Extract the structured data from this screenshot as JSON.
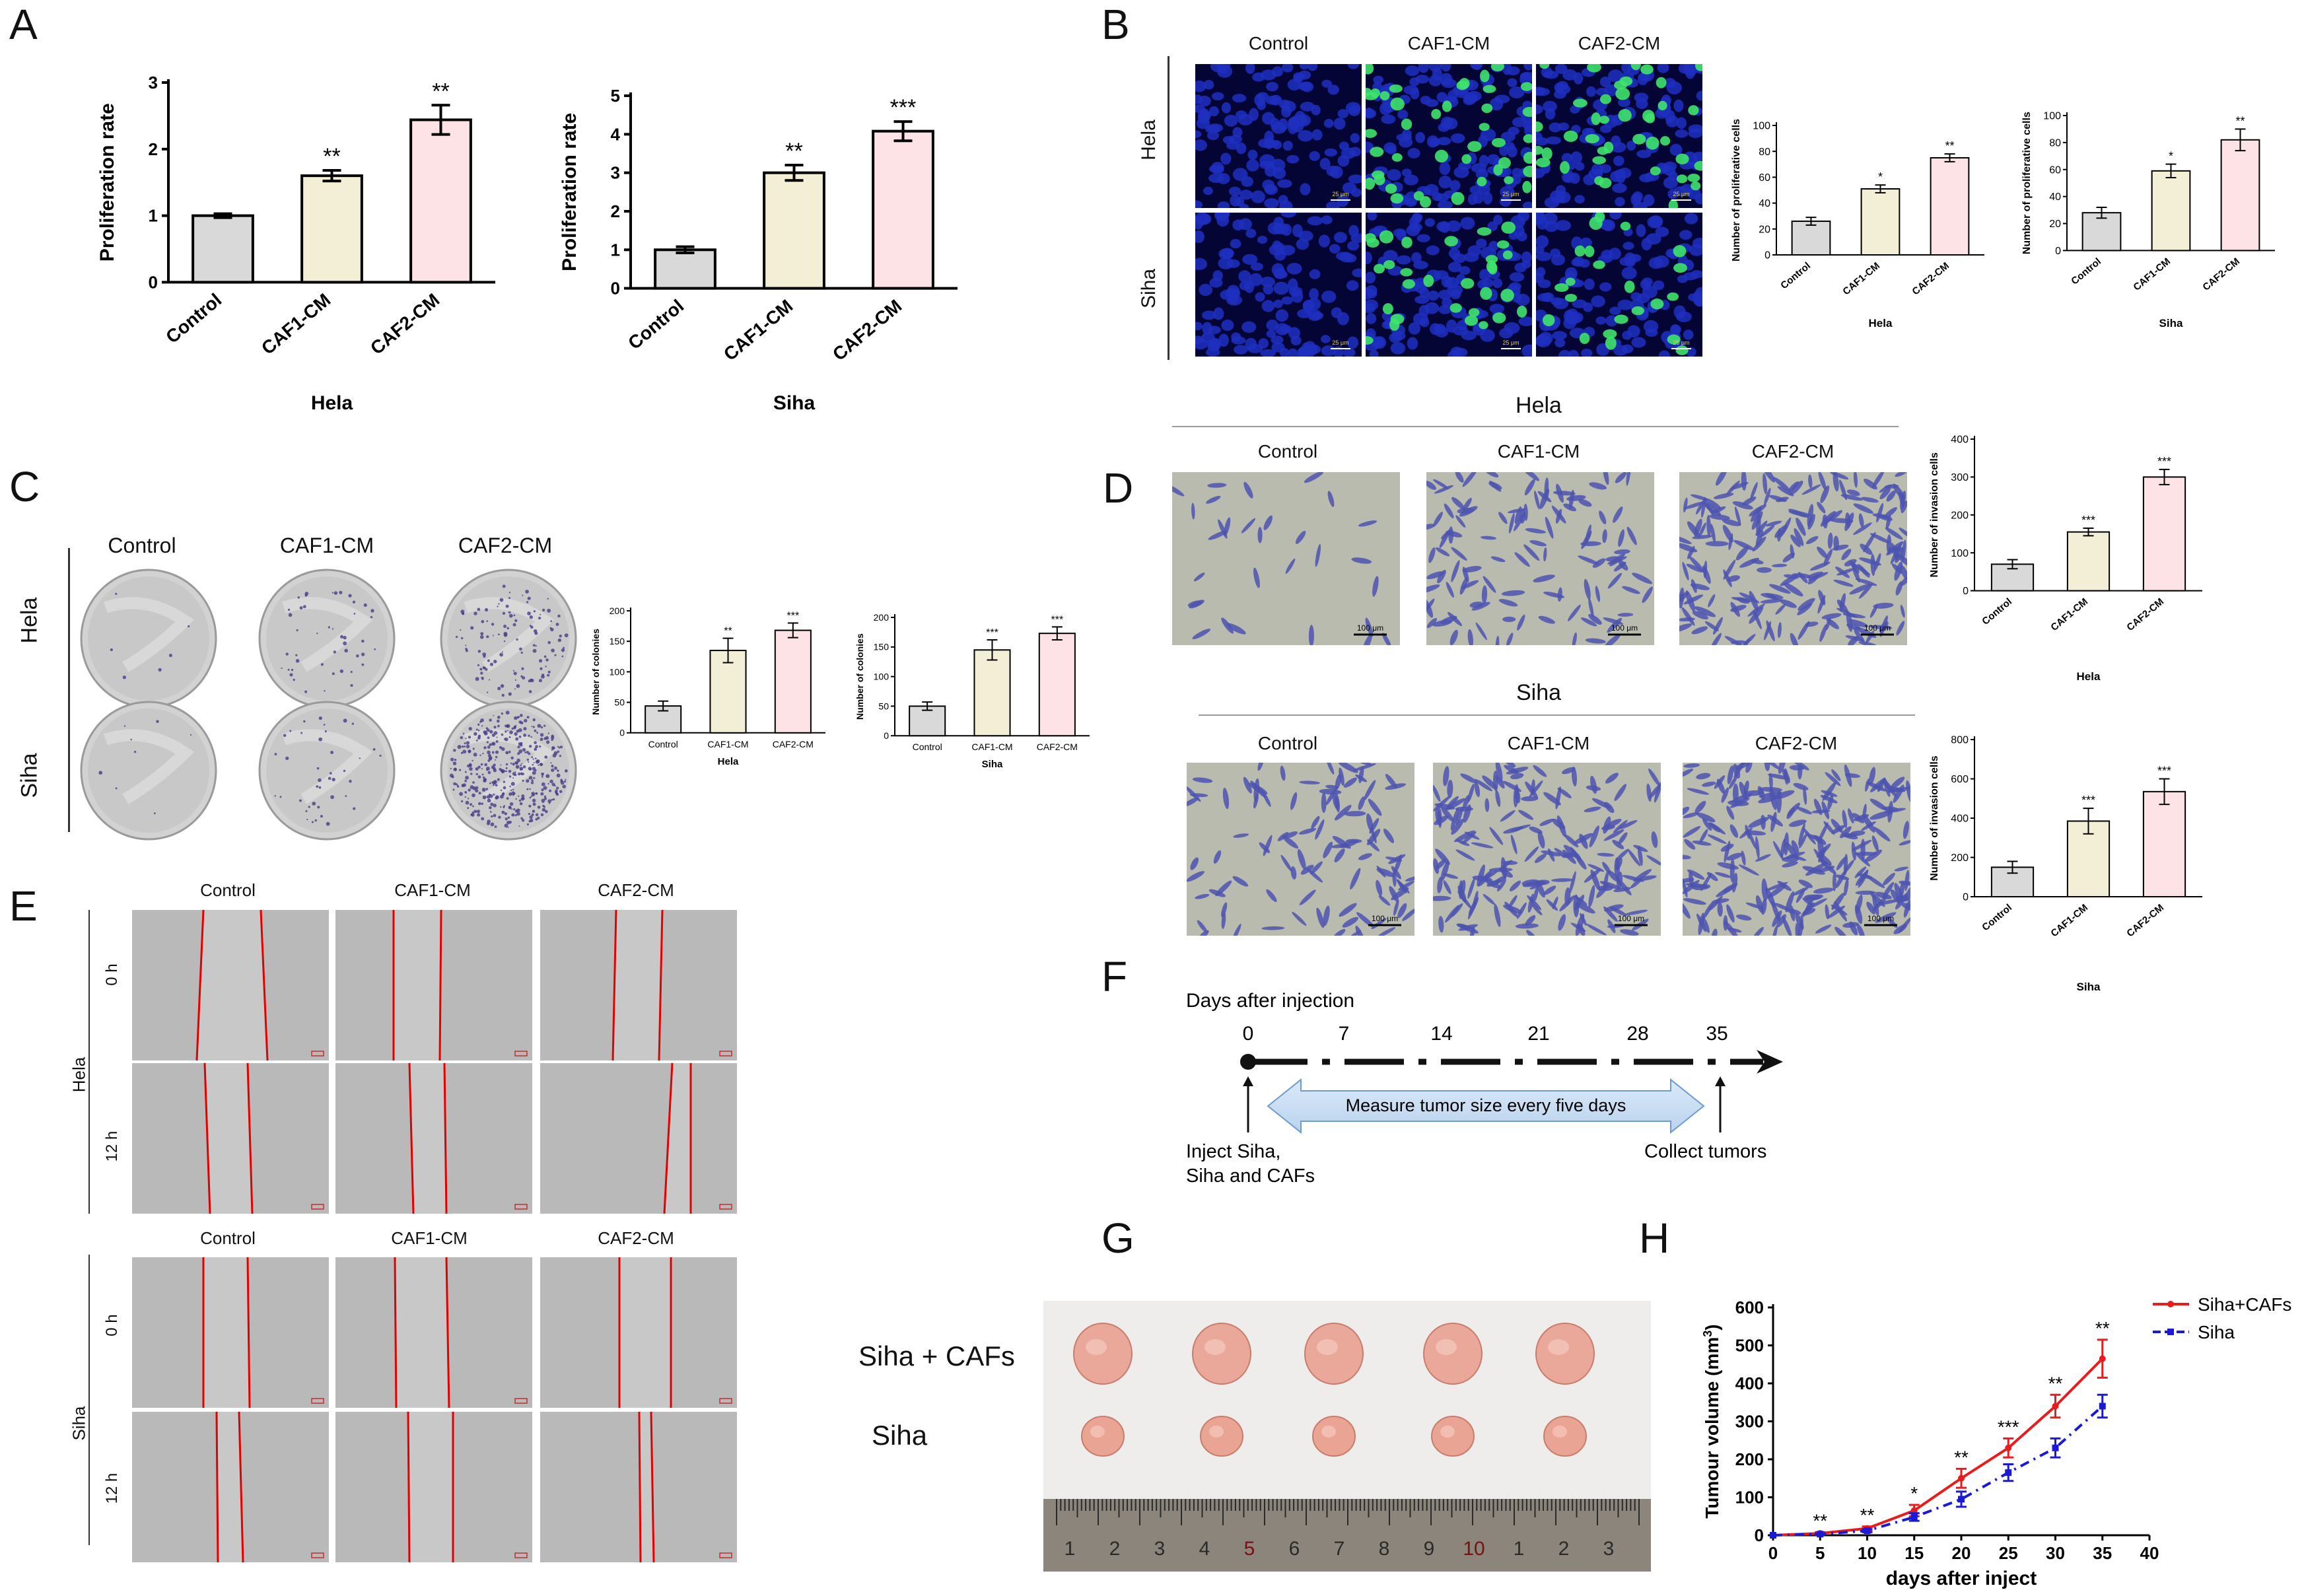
{
  "panels": {
    "A": "A",
    "B": "B",
    "C": "C",
    "D": "D",
    "E": "E",
    "F": "F",
    "G": "G",
    "H": "H"
  },
  "conditions": [
    "Control",
    "CAF1-CM",
    "CAF2-CM"
  ],
  "cell_lines": {
    "hela": "Hela",
    "siha": "Siha"
  },
  "scale_bars": {
    "b": "25 μm",
    "d": "100 μm"
  },
  "timepoints": {
    "t0": "0 h",
    "t12": "12 h"
  },
  "colors": {
    "control": "#d9d9d9",
    "caf1": "#f2efd6",
    "caf2": "#fde3e5",
    "h_siha_cafs": "#e81c1c",
    "h_siha": "#1a1ad6"
  },
  "chart_data": [
    {
      "id": "A1",
      "type": "bar",
      "categories": [
        "Control",
        "CAF1-CM",
        "CAF2-CM"
      ],
      "values": [
        1.0,
        1.6,
        2.44
      ],
      "errors": [
        0.03,
        0.08,
        0.22
      ],
      "sig": [
        "",
        "**",
        "**"
      ],
      "ylabel": "Proliferation rate",
      "xlabel": "Hela",
      "ylim": [
        0,
        3
      ],
      "yticks": [
        0,
        1,
        2,
        3
      ]
    },
    {
      "id": "A2",
      "type": "bar",
      "categories": [
        "Control",
        "CAF1-CM",
        "CAF2-CM"
      ],
      "values": [
        1.0,
        3.0,
        4.08
      ],
      "errors": [
        0.08,
        0.2,
        0.25
      ],
      "sig": [
        "",
        "**",
        "***"
      ],
      "ylabel": "Proliferation rate",
      "xlabel": "Siha",
      "ylim": [
        0,
        5
      ],
      "yticks": [
        0,
        1,
        2,
        3,
        4,
        5
      ]
    },
    {
      "id": "B1",
      "type": "bar",
      "categories": [
        "Control",
        "CAF1-CM",
        "CAF2-CM"
      ],
      "values": [
        26,
        51,
        75
      ],
      "errors": [
        3,
        3,
        3
      ],
      "sig": [
        "",
        "*",
        "**"
      ],
      "ylabel": "Number of proliferative cells",
      "xlabel": "Hela",
      "ylim": [
        0,
        100
      ],
      "yticks": [
        0,
        20,
        40,
        60,
        80,
        100
      ]
    },
    {
      "id": "B2",
      "type": "bar",
      "categories": [
        "Control",
        "CAF1-CM",
        "CAF2-CM"
      ],
      "values": [
        28,
        59,
        82
      ],
      "errors": [
        4,
        5,
        8
      ],
      "sig": [
        "",
        "*",
        "**"
      ],
      "ylabel": "Number of proliferative cells",
      "xlabel": "Siha",
      "ylim": [
        0,
        100
      ],
      "yticks": [
        0,
        20,
        40,
        60,
        80,
        100
      ]
    },
    {
      "id": "C1",
      "type": "bar",
      "categories": [
        "Control",
        "CAF1-CM",
        "CAF2-CM"
      ],
      "values": [
        44,
        135,
        168
      ],
      "errors": [
        8,
        20,
        12
      ],
      "sig": [
        "",
        "**",
        "***"
      ],
      "ylabel": "Number of colonies",
      "xlabel": "Hela",
      "ylim": [
        0,
        200
      ],
      "yticks": [
        0,
        50,
        100,
        150,
        200
      ]
    },
    {
      "id": "C2",
      "type": "bar",
      "categories": [
        "Control",
        "CAF1-CM",
        "CAF2-CM"
      ],
      "values": [
        50,
        145,
        173
      ],
      "errors": [
        7,
        17,
        11
      ],
      "sig": [
        "",
        "***",
        "***"
      ],
      "ylabel": "Number of colonies",
      "xlabel": "Siha",
      "ylim": [
        0,
        200
      ],
      "yticks": [
        0,
        50,
        100,
        150,
        200
      ]
    },
    {
      "id": "D1",
      "type": "bar",
      "categories": [
        "Control",
        "CAF1-CM",
        "CAF2-CM"
      ],
      "values": [
        70,
        155,
        300
      ],
      "errors": [
        12,
        10,
        20
      ],
      "sig": [
        "",
        "***",
        "***"
      ],
      "ylabel": "Number of invasion cells",
      "xlabel": "Hela",
      "ylim": [
        0,
        400
      ],
      "yticks": [
        0,
        100,
        200,
        300,
        400
      ]
    },
    {
      "id": "D2",
      "type": "bar",
      "categories": [
        "Control",
        "CAF1-CM",
        "CAF2-CM"
      ],
      "values": [
        150,
        385,
        535
      ],
      "errors": [
        30,
        65,
        65
      ],
      "sig": [
        "",
        "***",
        "***"
      ],
      "ylabel": "Number of invasion cells",
      "xlabel": "Siha",
      "ylim": [
        0,
        800
      ],
      "yticks": [
        0,
        200,
        400,
        600,
        800
      ]
    },
    {
      "id": "H",
      "type": "line",
      "xlabel": "days after inject",
      "ylabel": "Tumour volume (mm",
      "ylabel_sup": "3",
      "ylabel_end": ")",
      "xlim": [
        0,
        40
      ],
      "ylim": [
        0,
        600
      ],
      "xticks": [
        0,
        5,
        10,
        15,
        20,
        25,
        30,
        35,
        40
      ],
      "yticks": [
        0,
        100,
        200,
        300,
        400,
        500,
        600
      ],
      "series": [
        {
          "name": "Siha+CAFs",
          "x": [
            0,
            5,
            10,
            15,
            20,
            25,
            30,
            35
          ],
          "y": [
            0,
            5,
            18,
            65,
            150,
            230,
            340,
            465
          ],
          "err": [
            0,
            3,
            5,
            15,
            25,
            25,
            30,
            50
          ]
        },
        {
          "name": "Siha",
          "x": [
            0,
            5,
            10,
            15,
            20,
            25,
            30,
            35
          ],
          "y": [
            0,
            3,
            12,
            48,
            95,
            165,
            230,
            340
          ],
          "err": [
            0,
            2,
            4,
            10,
            20,
            22,
            25,
            30
          ]
        }
      ],
      "sig": [
        {
          "x": 5,
          "label": "**"
        },
        {
          "x": 10,
          "label": "**"
        },
        {
          "x": 15,
          "label": "*"
        },
        {
          "x": 20,
          "label": "**"
        },
        {
          "x": 25,
          "label": "***"
        },
        {
          "x": 30,
          "label": "**"
        },
        {
          "x": 35,
          "label": "**"
        }
      ]
    }
  ],
  "timeline": {
    "title": "Days after injection",
    "days": [
      "0",
      "7",
      "14",
      "21",
      "28",
      "35"
    ],
    "arrow_text": "Measure tumor size every five days",
    "inject_text_1": "Inject Siha,",
    "inject_text_2": "Siha and CAFs",
    "collect_text": "Collect tumors"
  },
  "photo_g": {
    "row1": "Siha + CAFs",
    "row2": "Siha",
    "ruler": [
      "1",
      "2",
      "3",
      "4",
      "5",
      "6",
      "7",
      "8",
      "9",
      "10",
      "1",
      "2",
      "3"
    ]
  }
}
